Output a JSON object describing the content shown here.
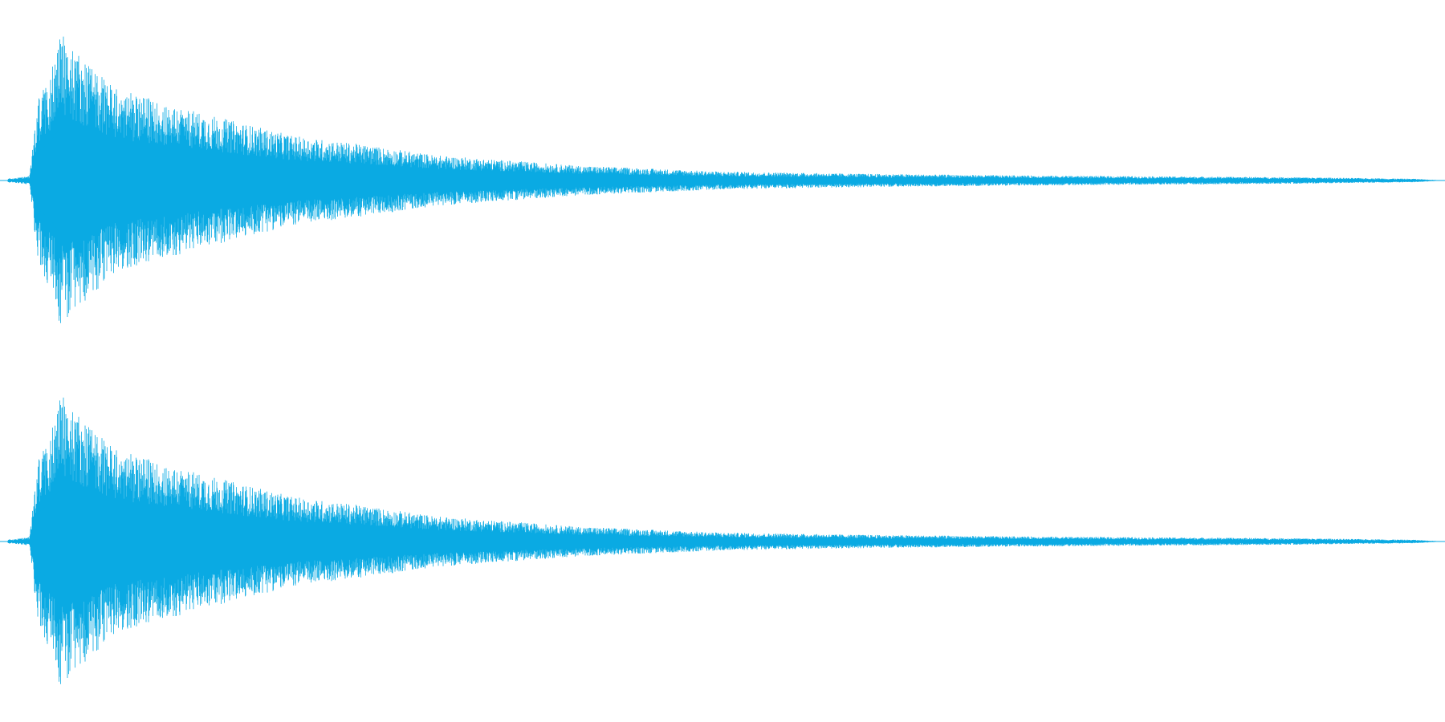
{
  "waveform": {
    "color": "#0aaae3",
    "channels": [
      {
        "channel": "left",
        "peak_amplitude": 1.0,
        "envelope": [
          [
            0.0,
            0.01
          ],
          [
            0.015,
            0.03
          ],
          [
            0.021,
            0.55
          ],
          [
            0.03,
            0.75
          ],
          [
            0.036,
            1.0
          ],
          [
            0.05,
            0.85
          ],
          [
            0.075,
            0.62
          ],
          [
            0.1,
            0.55
          ],
          [
            0.15,
            0.42
          ],
          [
            0.2,
            0.3
          ],
          [
            0.25,
            0.24
          ],
          [
            0.3,
            0.17
          ],
          [
            0.4,
            0.1
          ],
          [
            0.5,
            0.06
          ],
          [
            0.6,
            0.045
          ],
          [
            0.7,
            0.035
          ],
          [
            0.8,
            0.028
          ],
          [
            0.9,
            0.022
          ],
          [
            0.985,
            0.012
          ],
          [
            1.0,
            0.004
          ]
        ]
      },
      {
        "channel": "right",
        "peak_amplitude": 1.0,
        "envelope": [
          [
            0.0,
            0.01
          ],
          [
            0.015,
            0.03
          ],
          [
            0.021,
            0.55
          ],
          [
            0.03,
            0.75
          ],
          [
            0.036,
            1.0
          ],
          [
            0.05,
            0.85
          ],
          [
            0.075,
            0.62
          ],
          [
            0.1,
            0.55
          ],
          [
            0.15,
            0.42
          ],
          [
            0.2,
            0.3
          ],
          [
            0.25,
            0.24
          ],
          [
            0.3,
            0.17
          ],
          [
            0.4,
            0.1
          ],
          [
            0.5,
            0.06
          ],
          [
            0.6,
            0.045
          ],
          [
            0.7,
            0.035
          ],
          [
            0.8,
            0.028
          ],
          [
            0.9,
            0.022
          ],
          [
            0.985,
            0.012
          ],
          [
            1.0,
            0.004
          ]
        ]
      }
    ]
  }
}
